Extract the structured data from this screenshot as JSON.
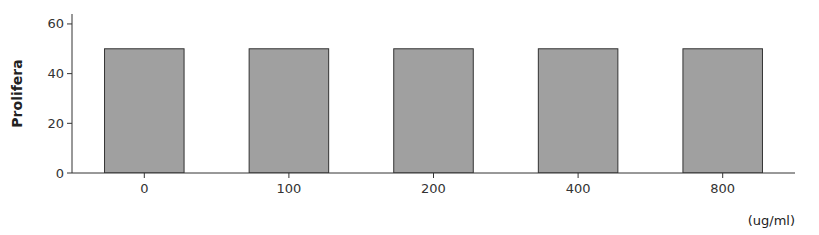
{
  "chart_data": {
    "type": "bar",
    "categories": [
      "0",
      "100",
      "200",
      "400",
      "800"
    ],
    "values": [
      50,
      50,
      50,
      50,
      50
    ],
    "color": "#a0a0a0",
    "ylabel": "Prolifera",
    "xlabel": "(ug/ml)",
    "ylim": [
      0,
      64
    ],
    "yticks": [
      0,
      20,
      40,
      60
    ],
    "grid": false
  }
}
